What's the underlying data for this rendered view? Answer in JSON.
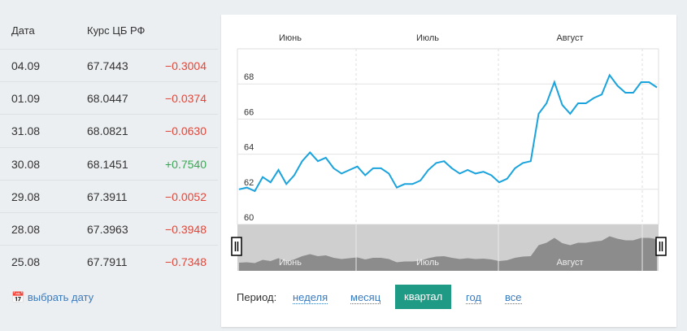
{
  "table": {
    "headers": [
      "Дата",
      "Курс ЦБ РФ"
    ],
    "rows": [
      [
        "04.09",
        "67.7443",
        "−0.3004"
      ],
      [
        "01.09",
        "68.0447",
        "−0.0374"
      ],
      [
        "31.08",
        "68.0821",
        "−0.0630"
      ],
      [
        "30.08",
        "68.1451",
        "+0.7540"
      ],
      [
        "29.08",
        "67.3911",
        "−0.0052"
      ],
      [
        "28.08",
        "67.3963",
        "−0.3948"
      ],
      [
        "25.08",
        "67.7911",
        "−0.7348"
      ]
    ]
  },
  "pick_date": "выбрать дату",
  "chart_data": {
    "type": "line",
    "months": [
      "Июнь",
      "Июль",
      "Август"
    ],
    "series": [
      {
        "color": "#1aa3dc",
        "values": [
          62.0,
          62.1,
          61.9,
          62.7,
          62.4,
          63.1,
          62.3,
          62.8,
          63.6,
          64.1,
          63.6,
          63.8,
          63.2,
          62.9,
          63.1,
          63.3,
          62.8,
          63.2,
          63.2,
          62.9,
          62.1,
          62.3,
          62.3,
          62.5,
          63.1,
          63.5,
          63.6,
          63.2,
          62.9,
          63.1,
          62.9,
          63.0,
          62.8,
          62.4,
          62.6,
          63.2,
          63.5,
          63.6,
          66.3,
          66.9,
          68.1,
          66.8,
          66.3,
          66.9,
          66.9,
          67.2,
          67.4,
          68.5,
          67.9,
          67.5,
          67.5,
          68.1,
          68.1,
          67.8
        ]
      }
    ],
    "ylim": [
      60,
      70
    ],
    "yticks": [
      60,
      62,
      64,
      66,
      68
    ],
    "grid": true
  },
  "period": {
    "label": "Период:",
    "options": [
      "неделя",
      "месяц",
      "квартал",
      "год",
      "все"
    ],
    "active": 2
  }
}
